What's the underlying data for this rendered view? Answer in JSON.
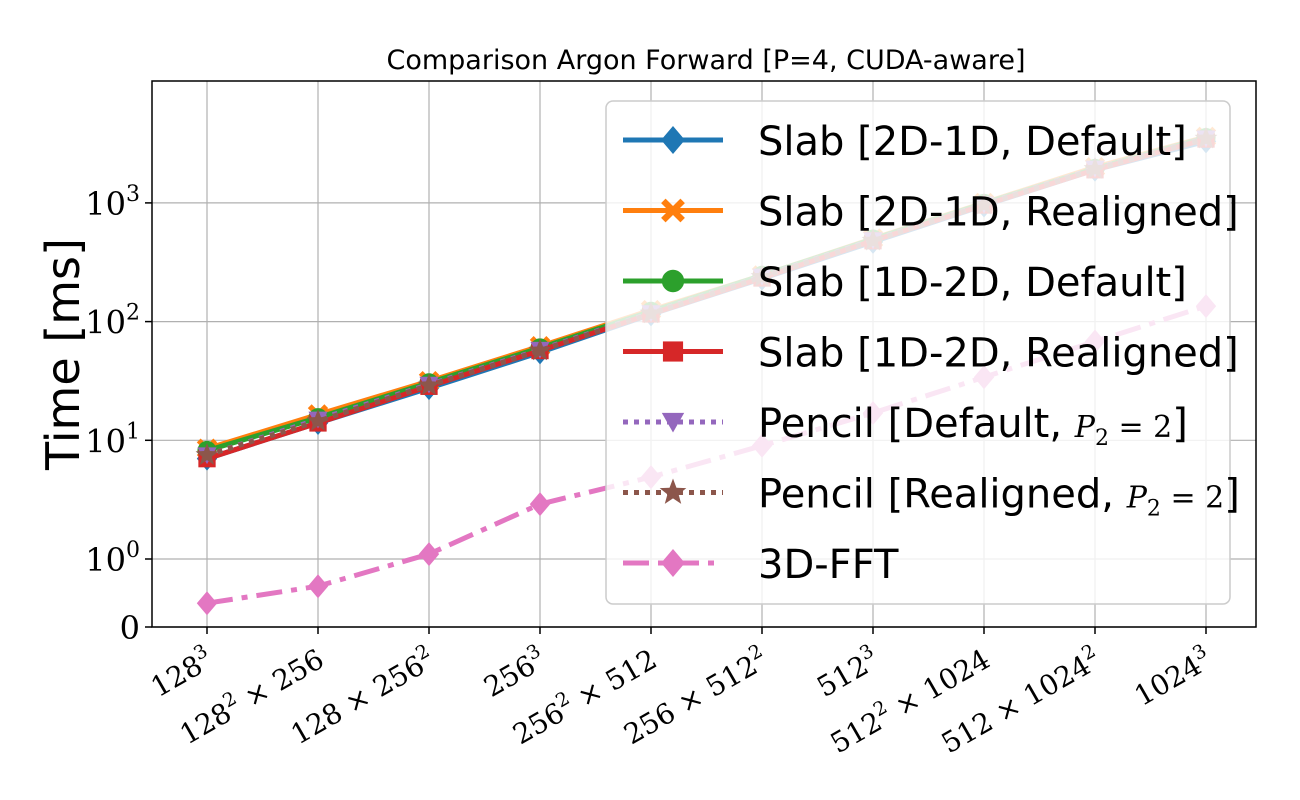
{
  "chart_data": {
    "type": "line",
    "title": "Comparison Argon Forward [P=4, CUDA-aware]",
    "xlabel": "",
    "ylabel": "Time [ms]",
    "yscale": "symlog",
    "grid": true,
    "legend_position": "upper-right",
    "categories": [
      {
        "base": "128",
        "sup": "3",
        "mid": "",
        "base2": "",
        "sup2": ""
      },
      {
        "base": "128",
        "sup": "2",
        "mid": " × 256",
        "base2": "",
        "sup2": ""
      },
      {
        "base": "128 × 256",
        "sup": "2",
        "mid": "",
        "base2": "",
        "sup2": ""
      },
      {
        "base": "256",
        "sup": "3",
        "mid": "",
        "base2": "",
        "sup2": ""
      },
      {
        "base": "256",
        "sup": "2",
        "mid": " × 512",
        "base2": "",
        "sup2": ""
      },
      {
        "base": "256 × 512",
        "sup": "2",
        "mid": "",
        "base2": "",
        "sup2": ""
      },
      {
        "base": "512",
        "sup": "3",
        "mid": "",
        "base2": "",
        "sup2": ""
      },
      {
        "base": "512",
        "sup": "2",
        "mid": " × 1024",
        "base2": "",
        "sup2": ""
      },
      {
        "base": "512 × 1024",
        "sup": "2",
        "mid": "",
        "base2": "",
        "sup2": ""
      },
      {
        "base": "1024",
        "sup": "3",
        "mid": "",
        "base2": "",
        "sup2": ""
      }
    ],
    "y_ticks": [
      {
        "value": 0,
        "base": "0",
        "exp": ""
      },
      {
        "value": 1,
        "base": "10",
        "exp": "0"
      },
      {
        "value": 10,
        "base": "10",
        "exp": "1"
      },
      {
        "value": 100,
        "base": "10",
        "exp": "2"
      },
      {
        "value": 1000,
        "base": "10",
        "exp": "3"
      }
    ],
    "series": [
      {
        "name": "Slab [2D-1D, Default]",
        "color": "#1f77b4",
        "marker": "diamond",
        "linestyle": "solid",
        "values": [
          7.0,
          14.0,
          27.5,
          55,
          115,
          230,
          470,
          950,
          1900,
          3300
        ]
      },
      {
        "name": "Slab [2D-1D, Realigned]",
        "color": "#ff7f0e",
        "marker": "x-filled",
        "linestyle": "solid",
        "values": [
          8.5,
          16.5,
          31.5,
          62,
          125,
          245,
          500,
          1000,
          2000,
          3600
        ]
      },
      {
        "name": "Slab [1D-2D, Default]",
        "color": "#2ca02c",
        "marker": "circle",
        "linestyle": "solid",
        "values": [
          8.2,
          15.5,
          30.5,
          60,
          122,
          245,
          495,
          990,
          1950,
          3550
        ]
      },
      {
        "name": "Slab [1D-2D, Realigned]",
        "color": "#d62728",
        "marker": "square",
        "linestyle": "solid",
        "values": [
          7.0,
          14.0,
          28.5,
          57,
          116,
          233,
          480,
          960,
          1900,
          3450
        ]
      },
      {
        "name": "Pencil [Default, ",
        "math": "P",
        "math_sub": "2",
        "math_rest": " = 2",
        "suffix": "]",
        "color": "#9467bd",
        "marker": "triangle-down",
        "linestyle": "dotted",
        "values": [
          7.5,
          15.0,
          29.5,
          58,
          118,
          240,
          485,
          970,
          1950,
          3500
        ]
      },
      {
        "name": "Pencil [Realigned, ",
        "math": "P",
        "math_sub": "2",
        "math_rest": " = 2",
        "suffix": "]",
        "color": "#8c564b",
        "marker": "star",
        "linestyle": "dotted",
        "values": [
          7.5,
          14.5,
          29.0,
          57,
          117,
          238,
          480,
          965,
          1930,
          3480
        ]
      },
      {
        "name": "3D-FFT",
        "color": "#e377c2",
        "marker": "diamond",
        "linestyle": "dashdot",
        "values": [
          0.35,
          0.6,
          1.1,
          2.9,
          4.9,
          9.0,
          17.0,
          34.0,
          68.0,
          135.0
        ]
      }
    ]
  }
}
